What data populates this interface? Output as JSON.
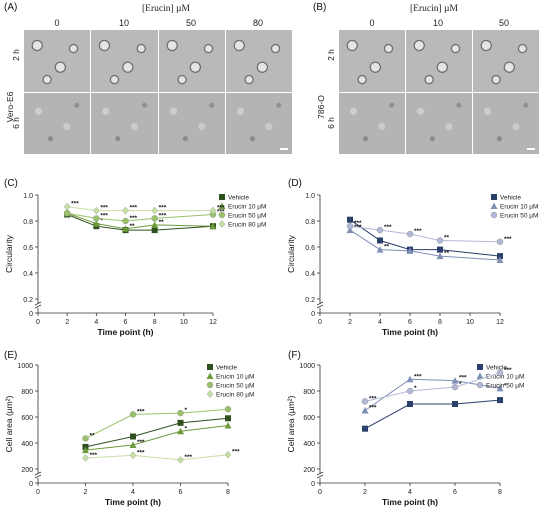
{
  "panels": {
    "a": {
      "label": "(A)",
      "header": "[Erucin]  µM",
      "columns": [
        "0",
        "10",
        "50",
        "80"
      ],
      "cell_line": "Vero-E6",
      "rows": [
        "2 h",
        "6 h"
      ]
    },
    "b": {
      "label": "(B)",
      "header": "[Erucin]  µM",
      "columns": [
        "0",
        "10",
        "50"
      ],
      "cell_line": "786-O",
      "rows": [
        "2 h",
        "6 h"
      ]
    },
    "c": {
      "label": "(C)"
    },
    "d": {
      "label": "(D)"
    },
    "e": {
      "label": "(E)"
    },
    "f": {
      "label": "(F)"
    }
  },
  "chart_data": [
    {
      "panel": "C",
      "type": "line",
      "xlabel": "Time point (h)",
      "ylabel": "Circularity",
      "x": [
        2,
        4,
        6,
        8,
        12
      ],
      "xticks": [
        0,
        2,
        4,
        6,
        8,
        10,
        12
      ],
      "xlim": [
        0,
        12
      ],
      "yticks": [
        0.2,
        0.4,
        0.6,
        0.8,
        1.0
      ],
      "ytick_labels": [
        "0.2",
        "0.4",
        "0.6",
        "0.8",
        "1.0"
      ],
      "ybreak_tick": "0",
      "ylim": [
        0.1,
        1.0
      ],
      "legend_position": "right",
      "series": [
        {
          "name": "Vehicle",
          "color": "#2e4f1e",
          "marker": "square",
          "values": [
            0.85,
            0.76,
            0.73,
            0.73,
            0.76
          ],
          "sig": [
            "",
            "",
            "",
            "",
            ""
          ]
        },
        {
          "name": "Erucin 10 µM",
          "color": "#6e9a3c",
          "marker": "triangle",
          "values": [
            0.86,
            0.78,
            0.74,
            0.77,
            0.76
          ],
          "sig": [
            "",
            "*",
            "**",
            "**",
            ""
          ]
        },
        {
          "name": "Erucin 50 µM",
          "color": "#9bc26a",
          "marker": "circle",
          "values": [
            0.86,
            0.82,
            0.8,
            0.82,
            0.85
          ],
          "sig": [
            "",
            "***",
            "***",
            "***",
            "***"
          ]
        },
        {
          "name": "Erucin 80 µM",
          "color": "#c6dfa4",
          "marker": "diamond",
          "values": [
            0.91,
            0.88,
            0.88,
            0.88,
            0.88
          ],
          "sig": [
            "***",
            "***",
            "***",
            "***",
            "***"
          ]
        }
      ]
    },
    {
      "panel": "D",
      "type": "line",
      "xlabel": "Time point (h)",
      "ylabel": "Circularity",
      "x": [
        2,
        4,
        6,
        8,
        12
      ],
      "xticks": [
        0,
        2,
        4,
        6,
        8,
        10,
        12
      ],
      "xlim": [
        0,
        12
      ],
      "yticks": [
        0.2,
        0.4,
        0.6,
        0.8,
        1.0
      ],
      "ytick_labels": [
        "0.2",
        "0.4",
        "0.6",
        "0.8",
        "1.0"
      ],
      "ybreak_tick": "0",
      "ylim": [
        0.1,
        1.0
      ],
      "legend_position": "top-right",
      "series": [
        {
          "name": "Vehicle",
          "color": "#2b3f6b",
          "marker": "square",
          "values": [
            0.81,
            0.65,
            0.58,
            0.58,
            0.53
          ],
          "sig": [
            "",
            "",
            "",
            "",
            ""
          ]
        },
        {
          "name": "Erucin 10 µM",
          "color": "#7f8fb5",
          "marker": "triangle",
          "values": [
            0.73,
            0.58,
            0.57,
            0.53,
            0.5
          ],
          "sig": [
            "***",
            "**",
            "",
            "**",
            ""
          ]
        },
        {
          "name": "Erucin 50 µM",
          "color": "#b3b8d6",
          "marker": "circle",
          "values": [
            0.76,
            0.73,
            0.7,
            0.65,
            0.64
          ],
          "sig": [
            "***",
            "***",
            "***",
            "**",
            "***"
          ]
        }
      ]
    },
    {
      "panel": "E",
      "type": "line",
      "xlabel": "Time point (h)",
      "ylabel": "Cell area (µm²)",
      "x": [
        2,
        4,
        6,
        8
      ],
      "xticks": [
        0,
        2,
        4,
        6,
        8
      ],
      "xlim": [
        0,
        8
      ],
      "yticks": [
        200,
        400,
        600,
        800,
        1000
      ],
      "ytick_labels": [
        "200",
        "400",
        "600",
        "800",
        "1000"
      ],
      "ybreak_tick": "0",
      "ylim": [
        100,
        1000
      ],
      "legend_position": "top-right",
      "series": [
        {
          "name": "Vehicle",
          "color": "#2e4f1e",
          "marker": "square",
          "values": [
            370,
            450,
            555,
            590
          ],
          "sig": [
            "",
            "",
            "",
            ""
          ]
        },
        {
          "name": "Erucin 10 µM",
          "color": "#6e9a3c",
          "marker": "triangle",
          "values": [
            345,
            385,
            490,
            535
          ],
          "sig": [
            "",
            "***",
            "*",
            ""
          ]
        },
        {
          "name": "Erucin 50 µM",
          "color": "#9bc26a",
          "marker": "circle",
          "values": [
            435,
            620,
            630,
            660
          ],
          "sig": [
            "**",
            "***",
            "*",
            ""
          ]
        },
        {
          "name": "Erucin 80 µM",
          "color": "#c6dfa4",
          "marker": "diamond",
          "values": [
            285,
            305,
            270,
            310
          ],
          "sig": [
            "***",
            "***",
            "***",
            "***"
          ]
        }
      ]
    },
    {
      "panel": "F",
      "type": "line",
      "xlabel": "Time point (h)",
      "ylabel": "Cell area (µm²)",
      "x": [
        2,
        4,
        6,
        8
      ],
      "xticks": [
        0,
        2,
        4,
        6,
        8
      ],
      "xlim": [
        0,
        8
      ],
      "yticks": [
        200,
        400,
        600,
        800,
        1000
      ],
      "ytick_labels": [
        "200",
        "400",
        "600",
        "800",
        "1000"
      ],
      "ybreak_tick": "0",
      "ylim": [
        100,
        1000
      ],
      "legend_position": "top-right",
      "series": [
        {
          "name": "Vehicle",
          "color": "#2b3f6b",
          "marker": "square",
          "values": [
            510,
            700,
            700,
            730
          ],
          "sig": [
            "",
            "",
            "",
            ""
          ]
        },
        {
          "name": "Erucin 10 µM",
          "color": "#7f8fb5",
          "marker": "triangle",
          "values": [
            650,
            890,
            880,
            820
          ],
          "sig": [
            "***",
            "***",
            "***",
            "*"
          ]
        },
        {
          "name": "Erucin 50 µM",
          "color": "#b3b8d6",
          "marker": "circle",
          "values": [
            720,
            800,
            830,
            940
          ],
          "sig": [
            "***",
            "*",
            "*",
            "***"
          ]
        }
      ]
    }
  ]
}
